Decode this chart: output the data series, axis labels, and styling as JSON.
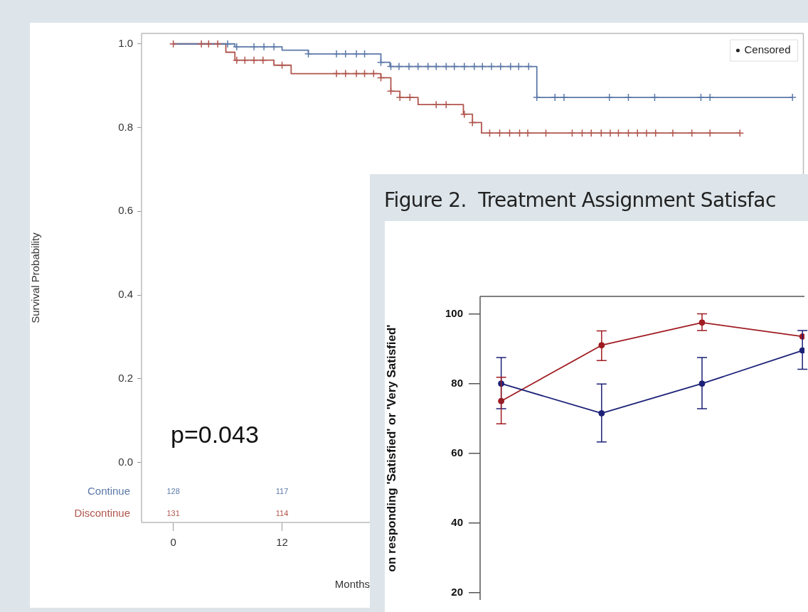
{
  "chart_data": [
    {
      "type": "step",
      "ylabel": "Survival Probability",
      "xlabel": "Months",
      "xlim": [
        -3.5,
        69.5
      ],
      "xticks": [
        0,
        12
      ],
      "ylim": [
        -0.143,
        1.025
      ],
      "yticks": [
        {
          "value": 0,
          "label": "0.0"
        },
        {
          "value": 0.2,
          "label": "0.2"
        },
        {
          "value": 0.4,
          "label": "0.4"
        },
        {
          "value": 0.6,
          "label": "0.6"
        },
        {
          "value": 0.8,
          "label": "0.8"
        },
        {
          "value": 1,
          "label": "1.0"
        }
      ],
      "grid": false,
      "legend": "bottom left",
      "annotations": [
        "p=0.043",
        "Censored",
        "128",
        "117",
        "131",
        "114"
      ],
      "series": [
        {
          "name": "Continue",
          "color": "#5b78a8",
          "x": [
            0,
            6.8,
            12.0,
            14.9,
            22.9,
            23.9,
            40.1,
            68.3
          ],
          "values": [
            1,
            0.993,
            0.985,
            0.976,
            0.956,
            0.946,
            0.872,
            0.872
          ]
        },
        {
          "name": "Discontinue",
          "color": "#b0554c",
          "x": [
            0,
            5.8,
            6.8,
            11.1,
            13.0,
            22.9,
            24.0,
            25.0,
            27.0,
            32.0,
            33.0,
            34.0,
            62.5
          ],
          "values": [
            1,
            0.98,
            0.961,
            0.949,
            0.929,
            0.919,
            0.887,
            0.872,
            0.855,
            0.832,
            0.812,
            0.787,
            0.787
          ]
        },
        {
          "type": "scatter",
          "marker": "cross",
          "color": "#5b78a8",
          "x": [
            6.0,
            7.0,
            8.9,
            10.0,
            11.1,
            14.9,
            18.0,
            19.0,
            20.2,
            21.1,
            22.9,
            24.0,
            24.9,
            26.0,
            27.0,
            28.1,
            29.0,
            30.1,
            31.0,
            32.1,
            33.2,
            34.1,
            35.1,
            36.1,
            37.2,
            38.1,
            39.2,
            40.1,
            42.1,
            43.1,
            48.1,
            50.2,
            53.1,
            58.2,
            59.2,
            68.3
          ],
          "values": [
            1,
            0.993,
            0.993,
            0.993,
            0.993,
            0.976,
            0.976,
            0.976,
            0.976,
            0.976,
            0.956,
            0.946,
            0.946,
            0.946,
            0.946,
            0.946,
            0.946,
            0.946,
            0.946,
            0.946,
            0.946,
            0.946,
            0.946,
            0.946,
            0.946,
            0.946,
            0.946,
            0.872,
            0.872,
            0.872,
            0.872,
            0.872,
            0.872,
            0.872,
            0.872,
            0.872
          ]
        },
        {
          "type": "scatter",
          "marker": "cross",
          "color": "#b0554c",
          "x": [
            0,
            3.1,
            3.9,
            4.9,
            7.0,
            7.9,
            8.9,
            9.9,
            12.0,
            18.0,
            19.0,
            20.2,
            21.1,
            22.1,
            22.9,
            24.0,
            25.0,
            26.1,
            29.0,
            30.1,
            32.1,
            33.0,
            34.9,
            36.0,
            37.1,
            38.2,
            39.1,
            41.1,
            44.0,
            45.1,
            46.1,
            47.2,
            48.2,
            49.1,
            50.2,
            51.2,
            52.2,
            53.2,
            55.1,
            57.2,
            59.2,
            62.5
          ],
          "values": [
            1,
            1,
            1,
            1,
            0.961,
            0.961,
            0.961,
            0.961,
            0.949,
            0.929,
            0.929,
            0.929,
            0.929,
            0.929,
            0.919,
            0.887,
            0.872,
            0.872,
            0.855,
            0.855,
            0.832,
            0.812,
            0.787,
            0.787,
            0.787,
            0.787,
            0.787,
            0.787,
            0.787,
            0.787,
            0.787,
            0.787,
            0.787,
            0.787,
            0.787,
            0.787,
            0.787,
            0.787,
            0.787,
            0.787,
            0.787,
            0.787
          ]
        }
      ]
    },
    {
      "type": "line",
      "title": "Figure 2.  Treatment Assignment Satisfac",
      "ylabel": "on responding 'Satisfied' or 'Very Satisfied'",
      "categories": [
        null,
        null,
        null,
        null
      ],
      "ylim": [
        18,
        105
      ],
      "yticks": [
        20,
        40,
        60,
        80,
        100
      ],
      "grid": false,
      "marker": "circle",
      "tick_labels": "y",
      "series": [
        {
          "color": "#1c2178",
          "values": [
            80,
            71.5,
            80,
            89.5
          ],
          "errors": [
            [
              72.8,
              87.5
            ],
            [
              63.3,
              79.9
            ],
            [
              72.8,
              87.5
            ],
            [
              84.1,
              95.2
            ]
          ]
        },
        {
          "color": "#a01c22",
          "values": [
            75,
            91,
            97.5,
            93.5
          ],
          "errors": [
            [
              68.5,
              81.8
            ],
            [
              86.6,
              95.1
            ],
            [
              95.2,
              100
            ],
            null
          ]
        }
      ]
    }
  ]
}
